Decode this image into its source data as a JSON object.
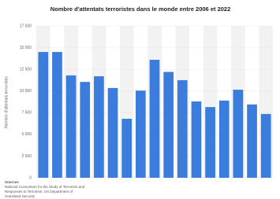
{
  "chart_data": {
    "type": "bar",
    "title": "Nombre d'attentats terroristes dans le monde entre 2006 et 2022",
    "y_label": "Nombre d'attentats terroristes",
    "categories": [
      null,
      null,
      null,
      null,
      null,
      null,
      null,
      null,
      null,
      null,
      null,
      null,
      null,
      null,
      null,
      null,
      null
    ],
    "values": [
      14500,
      14500,
      11800,
      11050,
      11700,
      10350,
      6800,
      10050,
      13600,
      12200,
      11250,
      8800,
      8150,
      8900,
      10150,
      8450,
      7350
    ],
    "color": "#3b7ddd",
    "ylim": [
      0,
      17500
    ],
    "yticks": [
      0,
      {
        "value": 2500,
        "label": "2 500"
      },
      {
        "value": 5000,
        "label": "5 000"
      },
      {
        "value": 7500,
        "label": "7 500"
      },
      {
        "value": 10000,
        "label": "10 000"
      },
      {
        "value": 12500,
        "label": "12 500"
      },
      {
        "value": 15000,
        "label": "15 000"
      },
      {
        "value": 17500,
        "label": "17 500"
      }
    ],
    "grid": true,
    "source_lines": [
      "Sources",
      "National Consortium for the Study of Terrorism and",
      "Responses to Terrorism; US Department of",
      "Homeland Security"
    ]
  }
}
